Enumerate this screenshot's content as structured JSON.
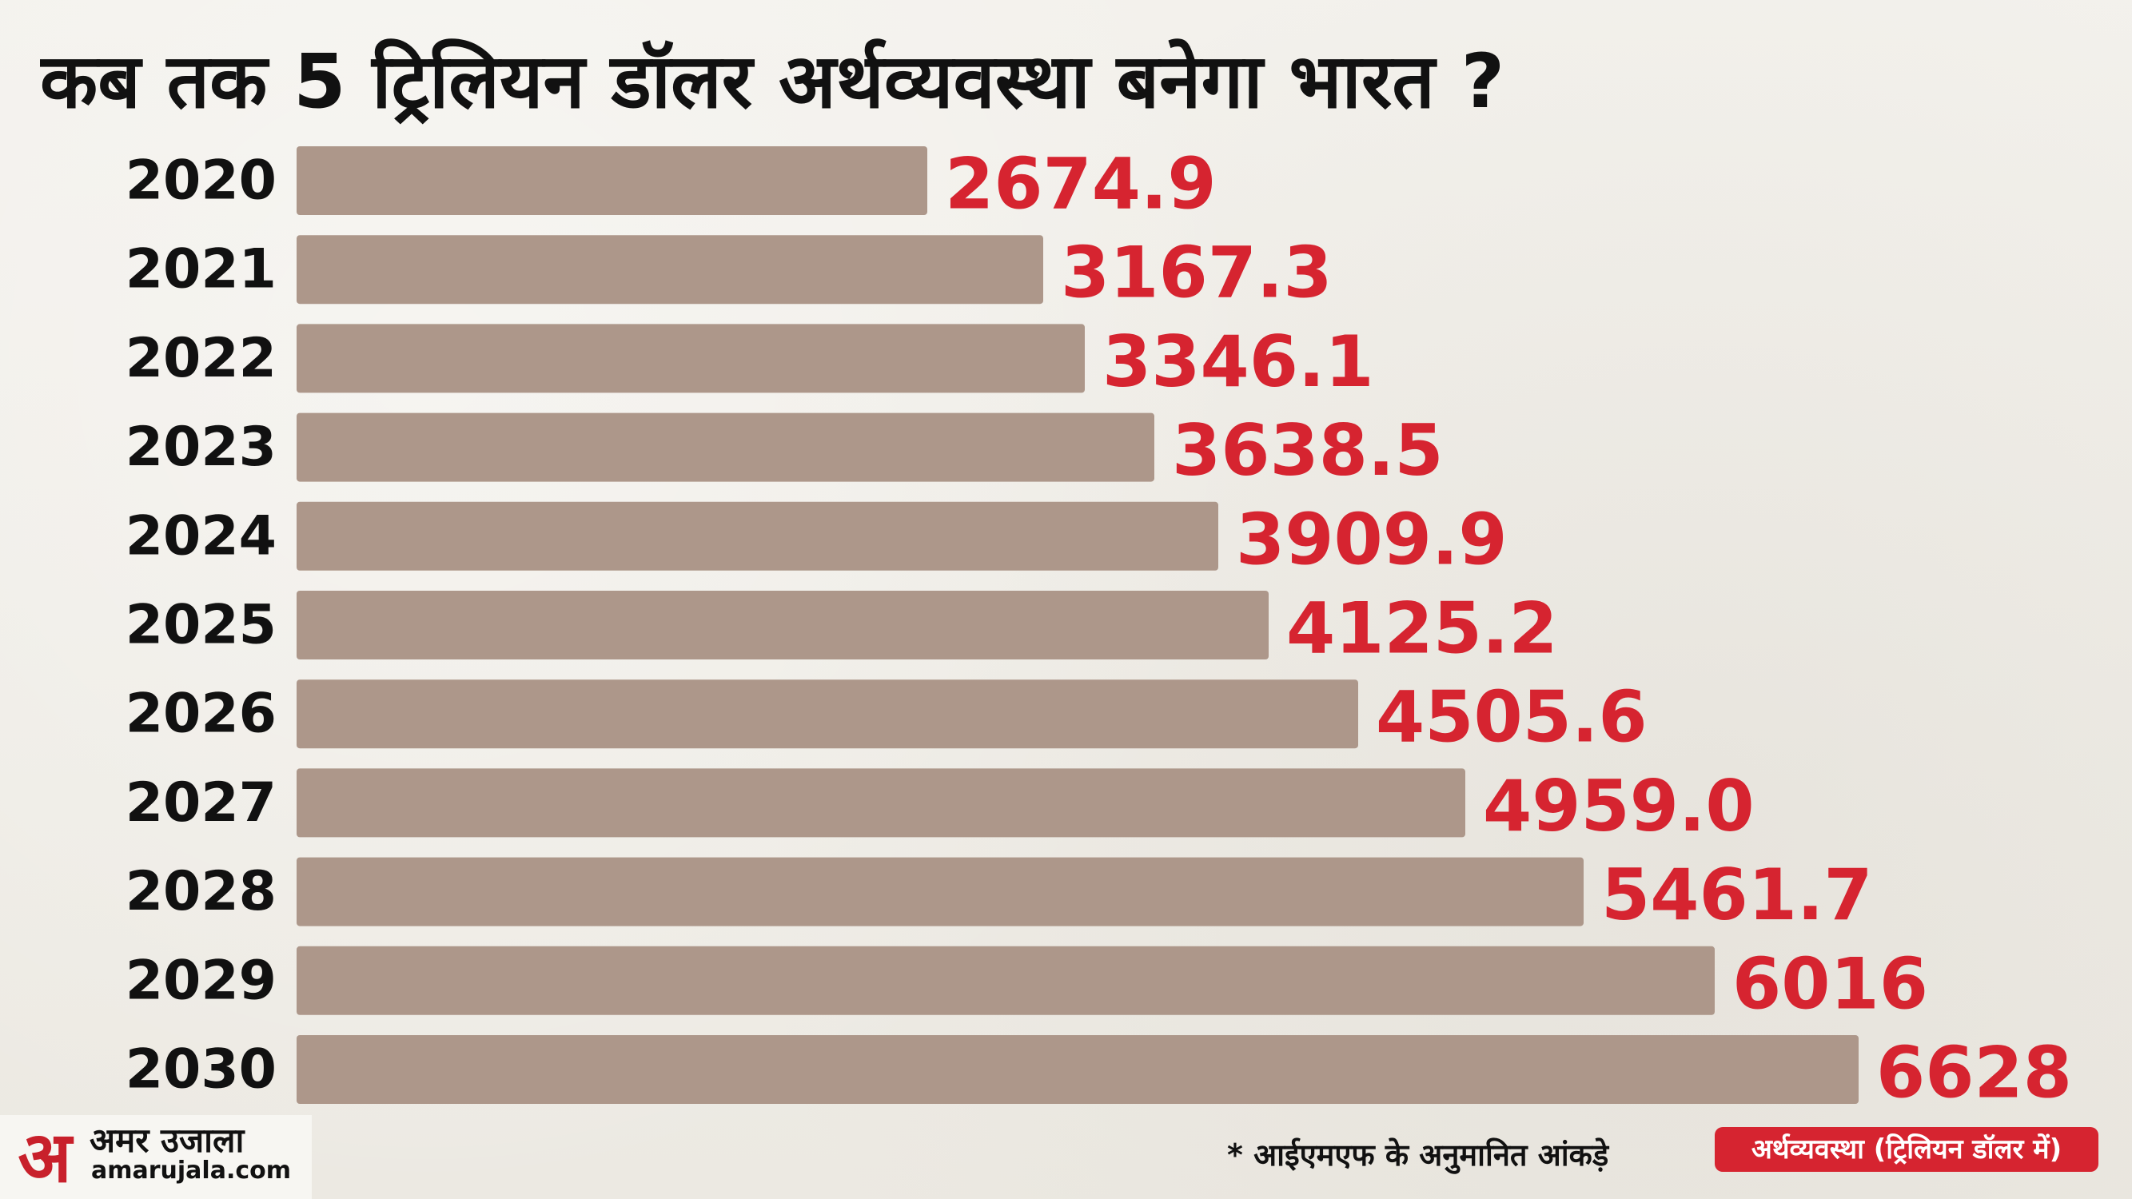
{
  "header": {
    "title": "कब तक 5 ट्रिलियन डॉलर अर्थव्यवस्था बनेगा भारत ?"
  },
  "chart_data": {
    "type": "bar",
    "orientation": "horizontal",
    "title": "कब तक 5 ट्रिलियन डॉलर अर्थव्यवस्था बनेगा भारत ?",
    "categories": [
      "2020",
      "2021",
      "2022",
      "2023",
      "2024",
      "2025",
      "2026",
      "2027",
      "2028",
      "2029",
      "2030"
    ],
    "values": [
      2674.9,
      3167.3,
      3346.1,
      3638.5,
      3909.9,
      4125.2,
      4505.6,
      4959.0,
      5461.7,
      6016,
      6628
    ],
    "value_labels": [
      "2674.9",
      "3167.3",
      "3346.1",
      "3638.5",
      "3909.9",
      "4125.2",
      "4505.6",
      "4959.0",
      "5461.7",
      "6016",
      "6628"
    ],
    "xlabel": "",
    "ylabel": "",
    "grid": false,
    "legend": "bottom-right",
    "bar_color": "#ad978a",
    "value_label_color": "#d62430",
    "category_label_color": "#111111"
  },
  "footer": {
    "source_note": "* आईएमएफ के अनुमानित आंकड़े",
    "legend_label": "अर्थव्यवस्था (ट्रिलियन डॉलर में)"
  },
  "logo": {
    "mark": "अ",
    "name": "अमर उजाला",
    "domain": "amarujala.com"
  },
  "colors": {
    "background": "#f0ede6",
    "accent_red": "#d62430",
    "text_dark": "#111111"
  }
}
